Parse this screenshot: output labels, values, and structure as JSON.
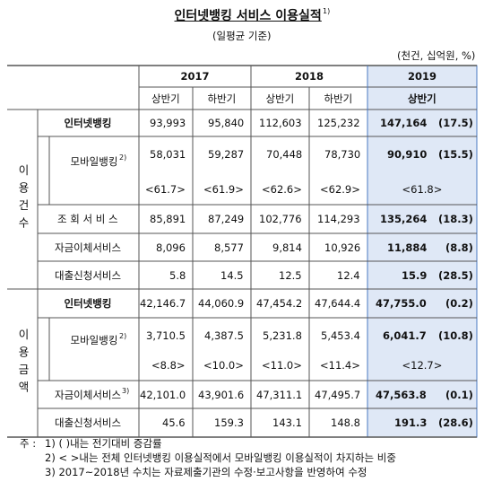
{
  "title": "인터넷뱅킹 서비스 이용실적",
  "title_note": "1)",
  "subtitle": "(일평균 기준)",
  "unit": "(천건, 십억원, %)",
  "header": {
    "years": [
      "2017",
      "2018",
      "2019"
    ],
    "halves": [
      "상반기",
      "하반기",
      "상반기",
      "하반기",
      "상반기"
    ]
  },
  "groups": [
    {
      "label": "이용건수",
      "rows": [
        {
          "label": "인터넷뱅킹",
          "values": [
            "93,993",
            "95,840",
            "112,603",
            "125,232"
          ],
          "latest": "147,164",
          "change": "(17.5)"
        },
        {
          "label": "모바일뱅킹",
          "note": "2)",
          "values": [
            "58,031",
            "59,287",
            "70,448",
            "78,730"
          ],
          "latest": "90,910",
          "change": "(15.5)",
          "shares": [
            "<61.7>",
            "<61.9>",
            "<62.6>",
            "<62.9>",
            "<61.8>"
          ]
        },
        {
          "label": "조 회 서 비 스",
          "values": [
            "85,891",
            "87,249",
            "102,776",
            "114,293"
          ],
          "latest": "135,264",
          "change": "(18.3)"
        },
        {
          "label": "자금이체서비스",
          "values": [
            "8,096",
            "8,577",
            "9,814",
            "10,926"
          ],
          "latest": "11,884",
          "change": "(8.8)"
        },
        {
          "label": "대출신청서비스",
          "values": [
            "5.8",
            "14.5",
            "12.5",
            "12.4"
          ],
          "latest": "15.9",
          "change": "(28.5)"
        }
      ]
    },
    {
      "label": "이용금액",
      "rows": [
        {
          "label": "인터넷뱅킹",
          "values": [
            "42,146.7",
            "44,060.9",
            "47,454.2",
            "47,644.4"
          ],
          "latest": "47,755.0",
          "change": "(0.2)"
        },
        {
          "label": "모바일뱅킹",
          "note": "2)",
          "values": [
            "3,710.5",
            "4,387.5",
            "5,231.8",
            "5,453.4"
          ],
          "latest": "6,041.7",
          "change": "(10.8)",
          "shares": [
            "<8.8>",
            "<10.0>",
            "<11.0>",
            "<11.4>",
            "<12.7>"
          ]
        },
        {
          "label": "자금이체서비스",
          "note": "3)",
          "values": [
            "42,101.0",
            "43,901.6",
            "47,311.1",
            "47,495.7"
          ],
          "latest": "47,563.8",
          "change": "(0.1)"
        },
        {
          "label": "대출신청서비스",
          "values": [
            "45.6",
            "159.3",
            "143.1",
            "148.8"
          ],
          "latest": "191.3",
          "change": "(28.6)"
        }
      ]
    }
  ],
  "notes": {
    "prefix": "주 :",
    "items": [
      "1) ( )내는 전기대비 증감률",
      "2) < >내는 전체 인터넷뱅킹 이용실적에서 모바일뱅킹 이용실적이 차지하는 비중",
      "3) 2017~2018년 수치는 자료제출기관의 수정·보고사항을 반영하여 수정"
    ]
  }
}
